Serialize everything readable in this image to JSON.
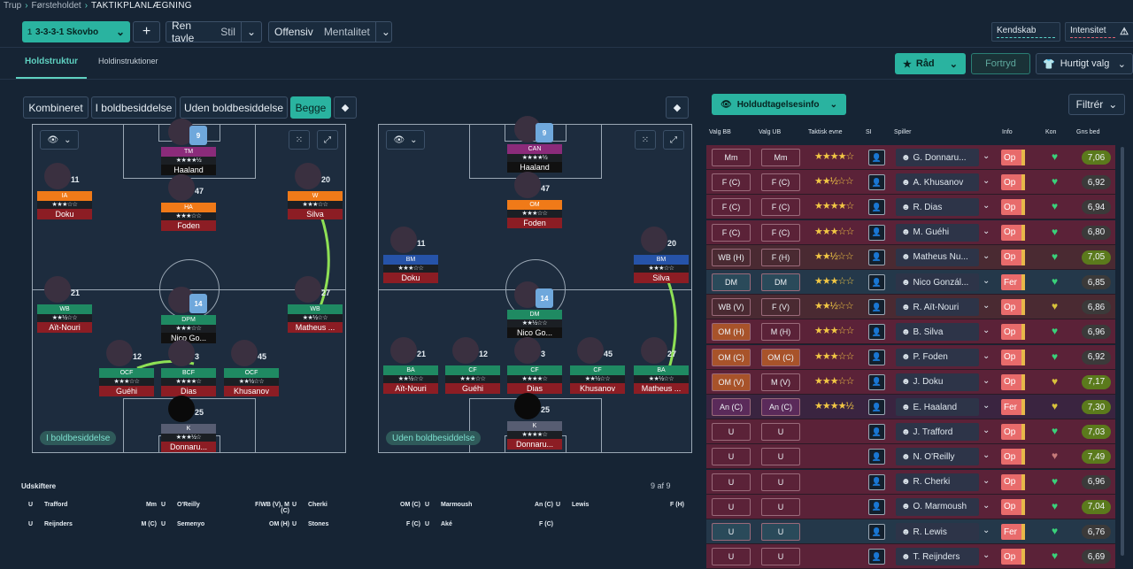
{
  "breadcrumb": {
    "a": "Trup",
    "b": "Førsteholdet",
    "c": "TAKTIKPLANLÆGNING"
  },
  "toolbar": {
    "formation_num": "1",
    "formation": "3-3-3-1 Skovbo",
    "plus": "+",
    "board_a": "Ren tavle",
    "board_b": "Stil",
    "mentality_a": "Offensiv",
    "mentality_b": "Mentalitet",
    "kendskab": "Kendskab",
    "intensitet": "Intensitet",
    "warn": "⚠"
  },
  "tabs": {
    "holdstruktur": "Holdstruktur",
    "holdinstruktioner": "Holdinstruktioner"
  },
  "actions": {
    "raad": "Råd",
    "fortryd": "Fortryd",
    "hurtigt": "Hurtigt valg"
  },
  "modes": {
    "kombineret": "Kombineret",
    "i_bold": "I boldbesiddelse",
    "uden_bold": "Uden boldbesiddelse",
    "begge": "Begge"
  },
  "pitch_left": {
    "label": "I boldbesiddelse",
    "players": [
      {
        "num": "9",
        "role": "TM",
        "stars": "★★★★½",
        "name": "Haaland",
        "role_color": "#8b2b7a",
        "shirt": true,
        "name_dark": true
      },
      {
        "num": "11",
        "role": "IA",
        "stars": "★★★☆☆",
        "name": "Doku",
        "role_color": "#f07a18"
      },
      {
        "num": "47",
        "role": "HA",
        "stars": "★★★☆☆",
        "name": "Foden",
        "role_color": "#f07a18"
      },
      {
        "num": "20",
        "role": "W",
        "stars": "★★★☆☆",
        "name": "Silva",
        "role_color": "#f07a18"
      },
      {
        "num": "21",
        "role": "WB",
        "stars": "★★½☆☆",
        "name": "Aït-Nouri",
        "role_color": "#1f8a62"
      },
      {
        "num": "14",
        "role": "DPM",
        "stars": "★★★☆☆",
        "name": "Nico Go...",
        "role_color": "#1f8a62",
        "shirt": true,
        "name_dark": true
      },
      {
        "num": "27",
        "role": "WB",
        "stars": "★★½☆☆",
        "name": "Matheus ...",
        "role_color": "#1f8a62"
      },
      {
        "num": "12",
        "role": "OCF",
        "stars": "★★★☆☆",
        "name": "Guéhi",
        "role_color": "#1f8a62"
      },
      {
        "num": "3",
        "role": "BCF",
        "stars": "★★★★☆",
        "name": "Dias",
        "role_color": "#1f8a62"
      },
      {
        "num": "45",
        "role": "OCF",
        "stars": "★★½☆☆",
        "name": "Khusanov",
        "role_color": "#1f8a62"
      },
      {
        "num": "25",
        "role": "K",
        "stars": "★★★½☆",
        "name": "Donnaru...",
        "role_color": "#575d72"
      }
    ]
  },
  "pitch_right": {
    "label": "Uden boldbesiddelse",
    "players": [
      {
        "num": "9",
        "role": "CAN",
        "stars": "★★★★½",
        "name": "Haaland",
        "role_color": "#8b2b7a",
        "shirt": true,
        "name_dark": true
      },
      {
        "num": "47",
        "role": "OM",
        "stars": "★★★☆☆",
        "name": "Foden",
        "role_color": "#f07a18"
      },
      {
        "num": "11",
        "role": "BM",
        "stars": "★★★☆☆",
        "name": "Doku",
        "role_color": "#2653a8"
      },
      {
        "num": "20",
        "role": "BM",
        "stars": "★★★☆☆",
        "name": "Silva",
        "role_color": "#2653a8"
      },
      {
        "num": "14",
        "role": "DM",
        "stars": "★★½☆☆",
        "name": "Nico Go...",
        "role_color": "#1f8a62",
        "shirt": true,
        "name_dark": true
      },
      {
        "num": "21",
        "role": "BA",
        "stars": "★★½☆☆",
        "name": "Aït-Nouri",
        "role_color": "#1f8a62"
      },
      {
        "num": "12",
        "role": "CF",
        "stars": "★★★☆☆",
        "name": "Guéhi",
        "role_color": "#1f8a62"
      },
      {
        "num": "3",
        "role": "CF",
        "stars": "★★★★☆",
        "name": "Dias",
        "role_color": "#1f8a62"
      },
      {
        "num": "45",
        "role": "CF",
        "stars": "★★½☆☆",
        "name": "Khusanov",
        "role_color": "#1f8a62"
      },
      {
        "num": "27",
        "role": "BA",
        "stars": "★★½☆☆",
        "name": "Matheus ...",
        "role_color": "#1f8a62"
      },
      {
        "num": "25",
        "role": "K",
        "stars": "★★★★☆",
        "name": "Donnaru...",
        "role_color": "#575d72"
      }
    ]
  },
  "subs": {
    "title": "Udskiftere",
    "count": "9 af 9",
    "rows": [
      [
        {
          "u": "U",
          "name": "Trafford",
          "pos": "Mm"
        },
        {
          "u": "U",
          "name": "O'Reilly",
          "pos": "F/WB (V), M (C)"
        },
        {
          "u": "U",
          "name": "Cherki",
          "pos": "OM (C)"
        },
        {
          "u": "U",
          "name": "Marmoush",
          "pos": "An (C)"
        },
        {
          "u": "U",
          "name": "Lewis",
          "pos": "F (H)"
        }
      ],
      [
        {
          "u": "U",
          "name": "Reijnders",
          "pos": "M (C)"
        },
        {
          "u": "U",
          "name": "Semenyo",
          "pos": "OM (H)"
        },
        {
          "u": "U",
          "name": "Stones",
          "pos": "F (C)"
        },
        {
          "u": "U",
          "name": "Aké",
          "pos": "F (C)"
        }
      ]
    ]
  },
  "panel": {
    "hud": "Holdudtagelsesinfo",
    "filtrer": "Filtrér",
    "headers": {
      "bb": "Valg BB",
      "ub": "Valg UB",
      "evne": "Taktisk evne",
      "si": "SI",
      "spiller": "Spiller",
      "info": "Info",
      "kon": "Kon",
      "gns": "Gns bed"
    },
    "rows": [
      {
        "bb": "Mm",
        "ub": "Mm",
        "stars": "★★★★☆",
        "player": "G. Donnaru...",
        "info": "Op",
        "score": "7,06",
        "bg": "#5b2238"
      },
      {
        "bb": "F (C)",
        "ub": "F (C)",
        "stars": "★★½☆☆",
        "player": "A. Khusanov",
        "info": "Op",
        "score": "6,92",
        "bg": "#5b2238"
      },
      {
        "bb": "F (C)",
        "ub": "F (C)",
        "stars": "★★★★☆",
        "player": "R. Dias",
        "info": "Op",
        "score": "6,94",
        "bg": "#5b2238"
      },
      {
        "bb": "F (C)",
        "ub": "F (C)",
        "stars": "★★★☆☆",
        "player": "M. Guéhi",
        "info": "Op",
        "score": "6,80",
        "bg": "#5b2238"
      },
      {
        "bb": "WB (H)",
        "ub": "F (H)",
        "stars": "★★½☆☆",
        "player": "Matheus Nu...",
        "info": "Op",
        "score": "7,05",
        "bg": "#4a2a32"
      },
      {
        "bb": "DM",
        "ub": "DM",
        "stars": "★★★☆☆",
        "player": "Nico Gonzál...",
        "info": "Fer",
        "score": "6,85",
        "bg": "#24384a"
      },
      {
        "bb": "WB (V)",
        "ub": "F (V)",
        "stars": "★★½☆☆",
        "player": "R. Aït-Nouri",
        "info": "Op",
        "score": "6,86",
        "bg": "#4a2a32"
      },
      {
        "bb": "OM (H)",
        "ub": "M (H)",
        "stars": "★★★☆☆",
        "player": "B. Silva",
        "info": "Op",
        "score": "6,96",
        "bg": "#5b2238"
      },
      {
        "bb": "OM (C)",
        "ub": "OM (C)",
        "stars": "★★★☆☆",
        "player": "P. Foden",
        "info": "Op",
        "score": "6,92",
        "bg": "#5b2238"
      },
      {
        "bb": "OM (V)",
        "ub": "M (V)",
        "stars": "★★★☆☆",
        "player": "J. Doku",
        "info": "Op",
        "score": "7,17",
        "bg": "#5b2238"
      },
      {
        "bb": "An (C)",
        "ub": "An (C)",
        "stars": "★★★★½",
        "player": "E. Haaland",
        "info": "Fer",
        "score": "7,30",
        "bg": "#3a2440"
      },
      {
        "bb": "U",
        "ub": "U",
        "stars": "",
        "player": "J. Trafford",
        "info": "Op",
        "score": "7,03",
        "bg": "#5b2238"
      },
      {
        "bb": "U",
        "ub": "U",
        "stars": "",
        "player": "N. O'Reilly",
        "info": "Op",
        "score": "7,49",
        "bg": "#5b2238"
      },
      {
        "bb": "U",
        "ub": "U",
        "stars": "",
        "player": "R. Cherki",
        "info": "Op",
        "score": "6,96",
        "bg": "#5b2238"
      },
      {
        "bb": "U",
        "ub": "U",
        "stars": "",
        "player": "O. Marmoush",
        "info": "Op",
        "score": "7,04",
        "bg": "#5b2238"
      },
      {
        "bb": "U",
        "ub": "U",
        "stars": "",
        "player": "R. Lewis",
        "info": "Fer",
        "score": "6,76",
        "bg": "#24384a"
      },
      {
        "bb": "U",
        "ub": "U",
        "stars": "",
        "player": "T. Reijnders",
        "info": "Op",
        "score": "6,69",
        "bg": "#5b2238"
      }
    ]
  }
}
